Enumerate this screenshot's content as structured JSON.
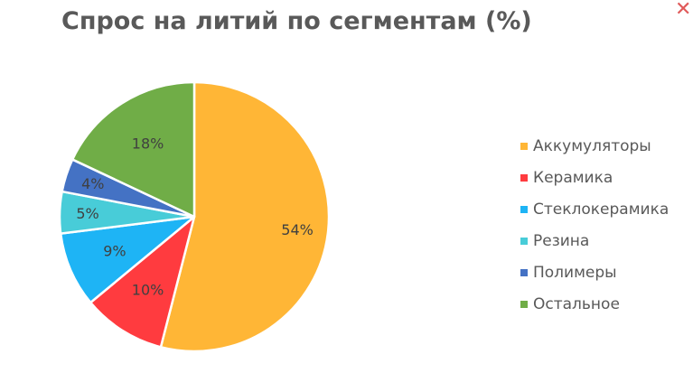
{
  "chart_data": {
    "type": "pie",
    "title": "Спрос на литий по сегментам (%)",
    "slices": [
      {
        "label": "Аккумуляторы",
        "value": 54,
        "display": "54%",
        "color": "#FFB636"
      },
      {
        "label": "Керамика",
        "value": 10,
        "display": "10%",
        "color": "#FF3B3F"
      },
      {
        "label": "Стеклокерамика",
        "value": 9,
        "display": "9%",
        "color": "#1EB4F5"
      },
      {
        "label": "Резина",
        "value": 5,
        "display": "5%",
        "color": "#48CCD8"
      },
      {
        "label": "Полимеры",
        "value": 4,
        "display": "4%",
        "color": "#4472C4"
      },
      {
        "label": "Остальное",
        "value": 18,
        "display": "18%",
        "color": "#70AD47"
      }
    ],
    "legend": "right"
  },
  "controls": {
    "close_symbol": "✕",
    "close_color": "#e05a5a"
  }
}
